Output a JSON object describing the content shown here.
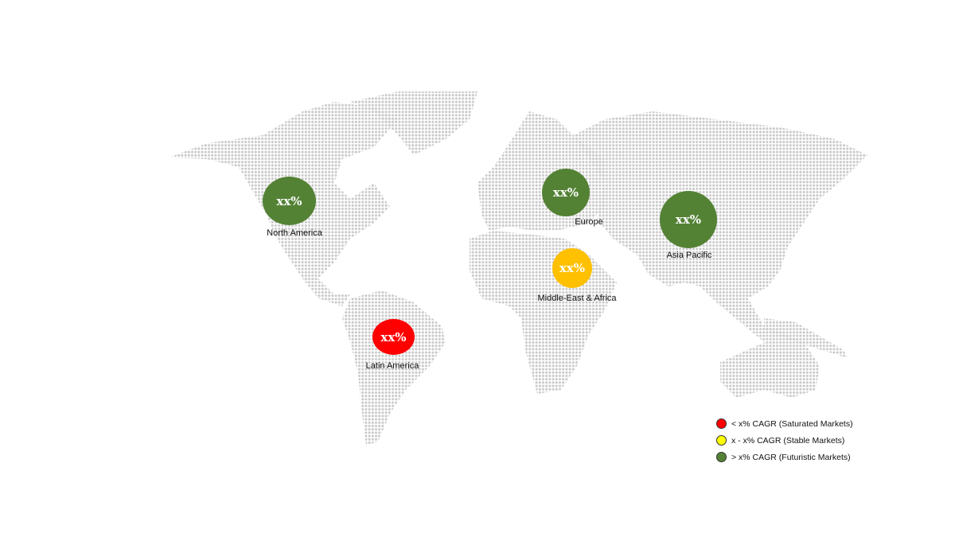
{
  "regions": [
    {
      "name": "North America",
      "value": "xx%",
      "color": "#548235"
    },
    {
      "name": "Europe",
      "value": "xx%",
      "color": "#548235"
    },
    {
      "name": "Asia Pacific",
      "value": "xx%",
      "color": "#548235"
    },
    {
      "name": "Middle-East & Africa",
      "value": "xx%",
      "color": "#FFC000"
    },
    {
      "name": "Latin America",
      "value": "xx%",
      "color": "#FF0000"
    }
  ],
  "legend": [
    {
      "label": "< x% CAGR (Saturated Markets)",
      "color": "#FF0000"
    },
    {
      "label": "x - x% CAGR (Stable Markets)",
      "color": "#FFFF00"
    },
    {
      "label": "> x% CAGR (Futuristic Markets)",
      "color": "#548235"
    }
  ],
  "map_dot_color": "#c8c8c8"
}
